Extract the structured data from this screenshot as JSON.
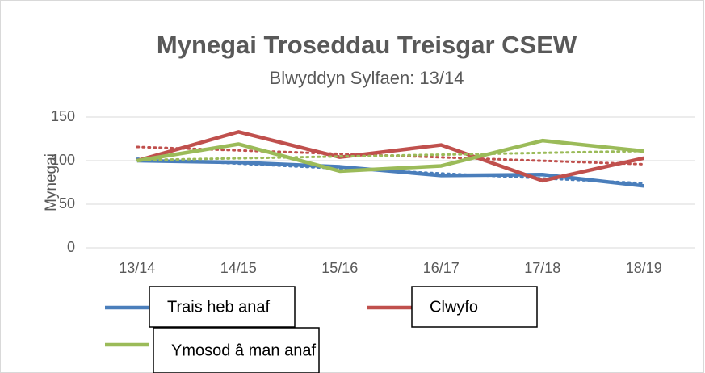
{
  "chart_data": {
    "type": "line",
    "title": "Mynegai Troseddau Treisgar CSEW",
    "subtitle": "Blwyddyn Sylfaen: 13/14",
    "y_label": "Mynegai",
    "categories": [
      "13/14",
      "14/15",
      "15/16",
      "16/17",
      "17/18",
      "18/19"
    ],
    "series": [
      {
        "name": "Trais heb anaf",
        "color": "#4a7ebb",
        "values": [
          100,
          98,
          93,
          83,
          84,
          71
        ]
      },
      {
        "name": "Clwyfo",
        "color": "#c0504d",
        "values": [
          100,
          133,
          104,
          118,
          77,
          103
        ]
      },
      {
        "name": "Ymosod â man anaf",
        "color": "#9bbb59",
        "values": [
          100,
          119,
          88,
          94,
          123,
          111
        ]
      }
    ],
    "ylim": [
      0,
      150
    ],
    "yticks": [
      0,
      50,
      100,
      150
    ],
    "grid": true,
    "trendline": true
  }
}
